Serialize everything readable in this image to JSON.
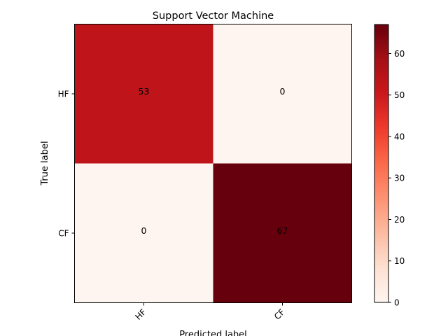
{
  "chart_data": {
    "type": "heatmap",
    "title": "Support Vector Machine",
    "xlabel": "Predicted label",
    "ylabel": "True label",
    "x_categories": [
      "HF",
      "CF"
    ],
    "y_categories": [
      "HF",
      "CF"
    ],
    "values": [
      [
        53,
        0
      ],
      [
        0,
        67
      ]
    ],
    "value_labels": [
      [
        "53",
        "0"
      ],
      [
        "0",
        "67"
      ]
    ],
    "colormap": "Reds",
    "color_range": [
      0,
      67
    ],
    "colorbar_ticks": [
      0,
      10,
      20,
      30,
      40,
      50,
      60
    ],
    "colorbar_tick_labels": [
      "0",
      "10",
      "20",
      "30",
      "40",
      "50",
      "60"
    ],
    "annotation_colors": {
      "light": "#ffffff",
      "dark": "#000000"
    }
  }
}
